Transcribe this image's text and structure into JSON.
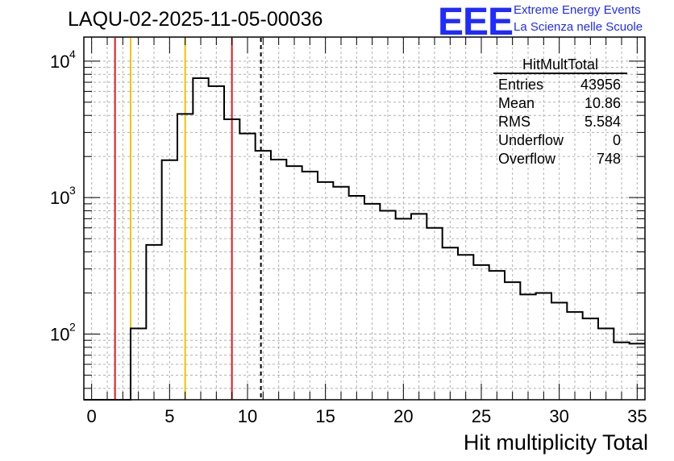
{
  "title": "LAQU-02-2025-11-05-00036",
  "logo": {
    "text": "EEE",
    "line1": "Extreme Energy Events",
    "line2": "La Scienza nelle Scuole",
    "color": "#1f2bff"
  },
  "stats": {
    "name": "HitMultTotal",
    "rows": [
      {
        "label": "Entries",
        "value": "43956"
      },
      {
        "label": "Mean",
        "value": "10.86"
      },
      {
        "label": "RMS",
        "value": "5.584"
      },
      {
        "label": "Underflow",
        "value": "0"
      },
      {
        "label": "Overflow",
        "value": "748"
      }
    ]
  },
  "chart_data": {
    "type": "histogram",
    "title": "LAQU-02-2025-11-05-00036",
    "xlabel": "Hit multiplicity Total",
    "ylabel": "",
    "xlim": [
      -0.5,
      35.5
    ],
    "ylim": [
      33,
      15000
    ],
    "yscale": "log",
    "grid": true,
    "x_ticks": [
      0,
      5,
      10,
      15,
      20,
      25,
      30,
      35
    ],
    "y_ticks": [
      {
        "value": 100,
        "base": "10",
        "exp": "2"
      },
      {
        "value": 1000,
        "base": "10",
        "exp": "3"
      },
      {
        "value": 10000,
        "base": "10",
        "exp": "4"
      }
    ],
    "bin_edges": [
      -0.5,
      0.5,
      1.5,
      2.5,
      3.5,
      4.5,
      5.5,
      6.5,
      7.5,
      8.5,
      9.5,
      10.5,
      11.5,
      12.5,
      13.5,
      14.5,
      15.5,
      16.5,
      17.5,
      18.5,
      19.5,
      20.5,
      21.5,
      22.5,
      23.5,
      24.5,
      25.5,
      26.5,
      27.5,
      28.5,
      29.5,
      30.5,
      31.5,
      32.5,
      33.5,
      34.5,
      35.5
    ],
    "counts": [
      0,
      0,
      0,
      110,
      450,
      1880,
      4100,
      7500,
      6550,
      3750,
      2950,
      2200,
      1900,
      1700,
      1550,
      1300,
      1200,
      1030,
      900,
      800,
      700,
      760,
      600,
      430,
      380,
      320,
      290,
      240,
      195,
      200,
      170,
      145,
      130,
      110,
      87,
      85
    ],
    "vertical_lines": [
      {
        "x": 1.5,
        "color": "#e31a1c",
        "style": "solid"
      },
      {
        "x": 2.5,
        "color": "#f2c200",
        "style": "solid"
      },
      {
        "x": 6.0,
        "color": "#f2c200",
        "style": "solid"
      },
      {
        "x": 9.0,
        "color": "#e31a1c",
        "style": "solid"
      },
      {
        "x": 10.86,
        "color": "#000000",
        "style": "dashed"
      }
    ]
  }
}
